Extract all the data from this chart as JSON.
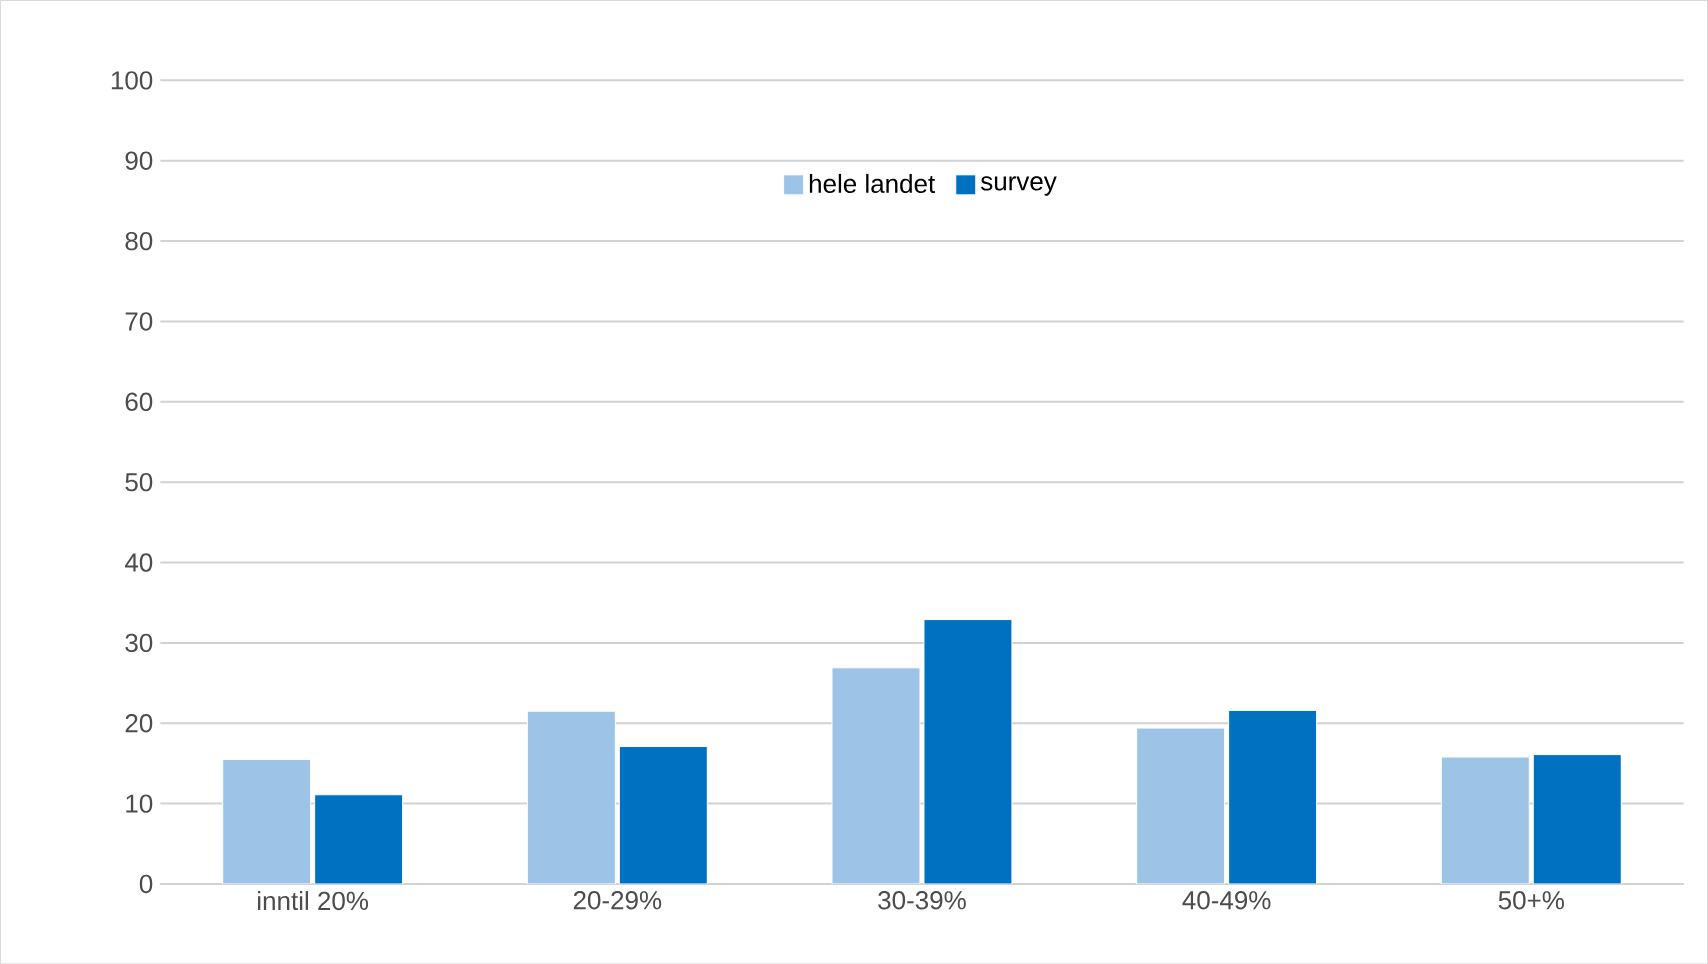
{
  "chart_data": {
    "type": "bar",
    "categories": [
      "inntil 20%",
      "20-29%",
      "30-39%",
      "40-49%",
      "50+%"
    ],
    "series": [
      {
        "name": "hele landet",
        "color": "#9dc3e6",
        "values": [
          15.5,
          21.5,
          26.9,
          19.4,
          15.8
        ]
      },
      {
        "name": "survey",
        "color": "#0070c0",
        "values": [
          11.1,
          17.1,
          32.9,
          21.6,
          16.1
        ]
      }
    ],
    "ylim": [
      0,
      100
    ],
    "yticks": [
      0,
      10,
      20,
      30,
      40,
      50,
      60,
      70,
      80,
      90,
      100
    ],
    "grid": "y",
    "legend": "top"
  }
}
